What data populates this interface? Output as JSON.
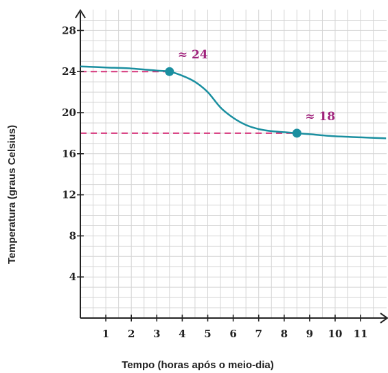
{
  "chart_data": {
    "type": "line",
    "xlabel": "Tempo (horas após o meio-dia)",
    "ylabel": "Temperatura (graus Celsius)",
    "xlim": [
      0,
      12
    ],
    "ylim": [
      0,
      30
    ],
    "x_ticks": [
      1,
      2,
      3,
      4,
      5,
      6,
      7,
      8,
      9,
      10,
      11
    ],
    "y_ticks": [
      4,
      8,
      12,
      16,
      20,
      24,
      28
    ],
    "grid": true,
    "series": [
      {
        "color": "#1a8fa0",
        "x": [
          0,
          1,
          2,
          3,
          3.5,
          4,
          4.5,
          5,
          5.5,
          6,
          6.5,
          7,
          7.5,
          8,
          8.5,
          9,
          10,
          11,
          12
        ],
        "y": [
          24.5,
          24.4,
          24.3,
          24.1,
          24,
          23.6,
          23,
          22,
          20.5,
          19.5,
          18.8,
          18.4,
          18.2,
          18.1,
          18,
          17.9,
          17.7,
          17.6,
          17.5
        ]
      }
    ],
    "highlighted_points": [
      {
        "x": 3.5,
        "y": 24,
        "label": "≈ 24"
      },
      {
        "x": 8.5,
        "y": 18,
        "label": "≈ 18"
      }
    ],
    "colors": {
      "curve": "#1a8fa0",
      "guide": "#d6337a",
      "annotation": "#a0237c"
    }
  }
}
